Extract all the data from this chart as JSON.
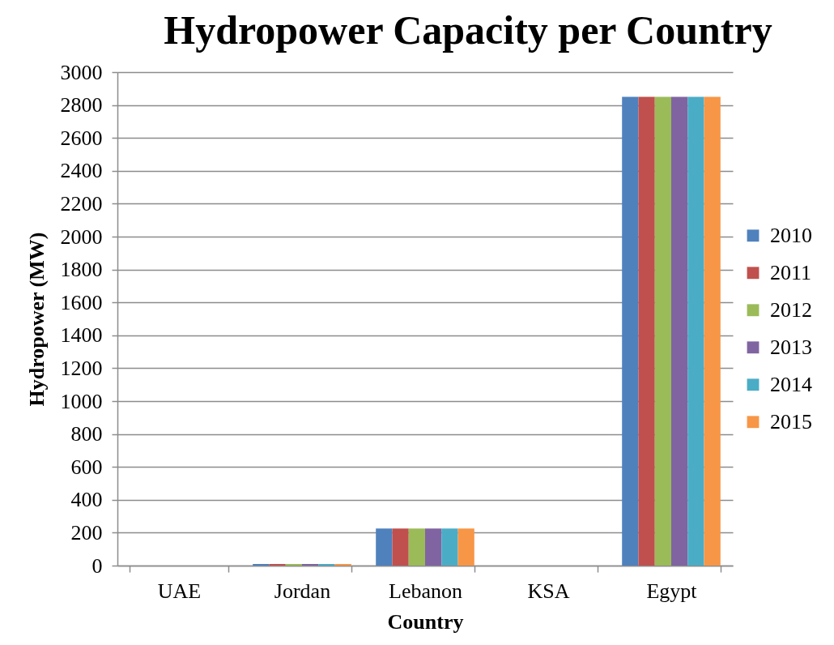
{
  "chart_data": {
    "type": "bar",
    "title": "Hydropower Capacity per Country",
    "xlabel": "Country",
    "ylabel": "Hydropower (MW)",
    "categories": [
      "UAE",
      "Jordan",
      "Lebanon",
      "KSA",
      "Egypt"
    ],
    "series": [
      {
        "name": "2010",
        "color": "#4f81bd",
        "values": [
          0,
          10,
          225,
          0,
          2850
        ]
      },
      {
        "name": "2011",
        "color": "#c0504d",
        "values": [
          0,
          10,
          225,
          0,
          2850
        ]
      },
      {
        "name": "2012",
        "color": "#9bbb59",
        "values": [
          0,
          10,
          225,
          0,
          2850
        ]
      },
      {
        "name": "2013",
        "color": "#8064a2",
        "values": [
          0,
          10,
          225,
          0,
          2850
        ]
      },
      {
        "name": "2014",
        "color": "#4bacc6",
        "values": [
          0,
          10,
          225,
          0,
          2850
        ]
      },
      {
        "name": "2015",
        "color": "#f79646",
        "values": [
          0,
          10,
          225,
          0,
          2850
        ]
      }
    ],
    "ylim": [
      0,
      3000
    ],
    "yticks": [
      0,
      200,
      400,
      600,
      800,
      1000,
      1200,
      1400,
      1600,
      1800,
      2000,
      2200,
      2400,
      2600,
      2800,
      3000
    ],
    "grid": "y",
    "legend": "right"
  }
}
